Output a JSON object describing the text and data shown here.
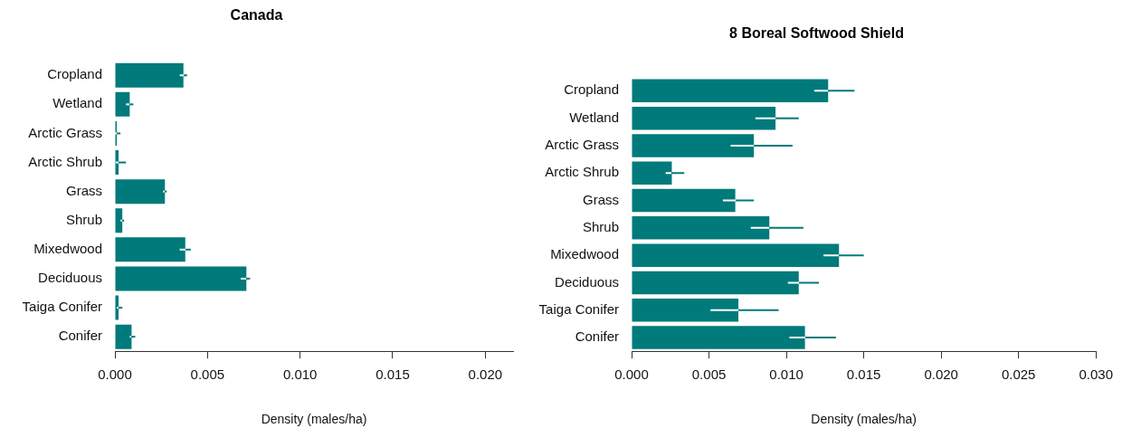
{
  "chart_data": [
    {
      "type": "bar",
      "orientation": "horizontal",
      "title": "Canada",
      "xlabel": "Density (males/ha)",
      "categories": [
        "Cropland",
        "Wetland",
        "Arctic Grass",
        "Arctic Shrub",
        "Grass",
        "Shrub",
        "Mixedwood",
        "Deciduous",
        "Taiga Conifer",
        "Conifer"
      ],
      "values": [
        0.0037,
        0.0008,
        0.0001,
        0.0002,
        0.0027,
        0.0004,
        0.0038,
        0.0071,
        0.0002,
        0.0009
      ],
      "errors": [
        [
          0.0035,
          0.0039
        ],
        [
          0.0006,
          0.001
        ],
        [
          0.0,
          0.0003
        ],
        [
          5e-05,
          0.0006
        ],
        [
          0.0026,
          0.0028
        ],
        [
          0.0003,
          0.0005
        ],
        [
          0.0035,
          0.0041
        ],
        [
          0.0068,
          0.0073
        ],
        [
          0.0001,
          0.0004
        ],
        [
          0.0008,
          0.0011
        ]
      ],
      "color": "#007a7a",
      "xlim": [
        0,
        0.0215
      ],
      "xticks": [
        {
          "value": 0,
          "label": "0.000"
        },
        {
          "value": 0.005,
          "label": "0.005"
        },
        {
          "value": 0.01,
          "label": "0.010"
        },
        {
          "value": 0.015,
          "label": "0.015"
        },
        {
          "value": 0.02,
          "label": "0.020"
        }
      ]
    },
    {
      "type": "bar",
      "orientation": "horizontal",
      "title": "8 Boreal Softwood Shield",
      "xlabel": "Density (males/ha)",
      "categories": [
        "Cropland",
        "Wetland",
        "Arctic Grass",
        "Arctic Shrub",
        "Grass",
        "Shrub",
        "Mixedwood",
        "Deciduous",
        "Taiga Conifer",
        "Conifer"
      ],
      "values": [
        0.0127,
        0.0093,
        0.0079,
        0.0026,
        0.0067,
        0.0089,
        0.0134,
        0.0108,
        0.0069,
        0.0112
      ],
      "errors": [
        [
          0.0118,
          0.0144
        ],
        [
          0.008,
          0.0108
        ],
        [
          0.0064,
          0.0104
        ],
        [
          0.0022,
          0.0034
        ],
        [
          0.0059,
          0.0079
        ],
        [
          0.0077,
          0.0111
        ],
        [
          0.0124,
          0.015
        ],
        [
          0.0101,
          0.0121
        ],
        [
          0.0051,
          0.0095
        ],
        [
          0.0102,
          0.0132
        ]
      ],
      "color": "#007a7a",
      "xlim": [
        0,
        0.03
      ],
      "xticks": [
        {
          "value": 0,
          "label": "0.000"
        },
        {
          "value": 0.005,
          "label": "0.005"
        },
        {
          "value": 0.01,
          "label": "0.010"
        },
        {
          "value": 0.015,
          "label": "0.015"
        },
        {
          "value": 0.02,
          "label": "0.020"
        },
        {
          "value": 0.025,
          "label": "0.025"
        },
        {
          "value": 0.03,
          "label": "0.030"
        }
      ]
    }
  ]
}
